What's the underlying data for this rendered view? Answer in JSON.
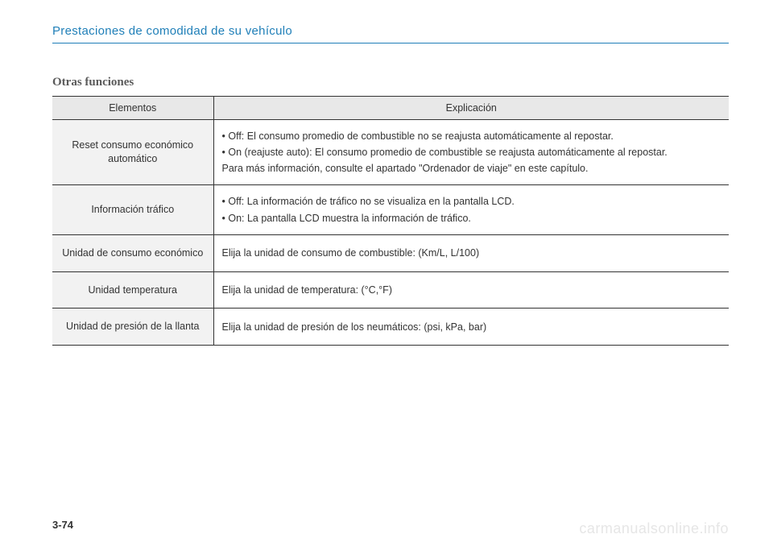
{
  "header": {
    "title": "Prestaciones de comodidad de su vehículo",
    "color": "#1f7fb8",
    "rule_color": "#1f7fb8"
  },
  "section_title": "Otras funciones",
  "table": {
    "header_bg": "#e8e8e8",
    "left_bg": "#f2f2f2",
    "border_color": "#333333",
    "columns": [
      "Elementos",
      "Explicación"
    ],
    "rows": [
      {
        "element": "Reset consumo económico automático",
        "explanation_lines": [
          "• Off: El consumo promedio de combustible no se reajusta automáticamente al repostar.",
          "• On (reajuste auto): El consumo promedio de combustible se reajusta automáticamente al repostar.",
          "Para más información, consulte el apartado \"Ordenador de viaje\" en este capítulo."
        ],
        "justify_indexes": [
          1
        ],
        "indent_line_2": true
      },
      {
        "element": "Información tráfico",
        "explanation_lines": [
          "• Off: La información de tráfico no se visualiza en la pantalla LCD.",
          "• On: La pantalla LCD muestra la información de tráfico."
        ]
      },
      {
        "element": "Unidad de consumo económico",
        "explanation_lines": [
          "Elija la unidad de consumo de combustible: (Km/L, L/100)"
        ]
      },
      {
        "element": "Unidad temperatura",
        "explanation_lines": [
          "Elija la unidad de temperatura: (°C,°F)"
        ]
      },
      {
        "element": "Unidad de presión de la llanta",
        "explanation_lines": [
          "Elija la unidad de presión de los neumáticos: (psi, kPa, bar)"
        ]
      }
    ]
  },
  "page_number": "3-74",
  "watermark": "carmanualsonline.info"
}
